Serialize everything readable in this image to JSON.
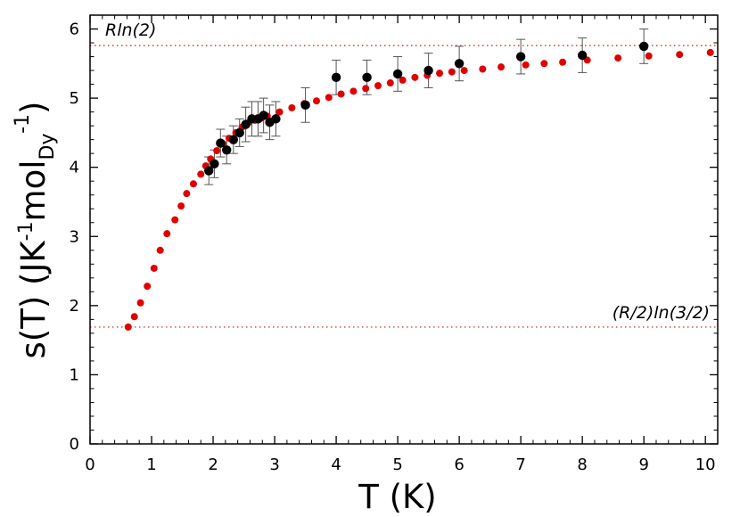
{
  "chart_data": {
    "type": "scatter",
    "title": "",
    "xlabel": "T (K)",
    "ylabel": {
      "prefix": "s(T) (JK",
      "sup1": "-1",
      "mid": "mol",
      "sub": "Dy",
      "sup2": "-1",
      "suffix": ")"
    },
    "xlim": [
      0,
      10.2
    ],
    "ylim": [
      0,
      6.2
    ],
    "x_ticks": [
      "0",
      "1",
      "2",
      "3",
      "4",
      "5",
      "6",
      "7",
      "8",
      "9",
      "10"
    ],
    "y_ticks": [
      "0",
      "1",
      "2",
      "3",
      "4",
      "5",
      "6"
    ],
    "grid": false,
    "reference_lines": [
      {
        "label": "Rln(2)",
        "y": 5.76,
        "color": "#d04040"
      },
      {
        "label": "(R/2)ln(3/2)",
        "y": 1.69,
        "color": "#d04040"
      }
    ],
    "series": [
      {
        "color": "#e00000",
        "points": [
          [
            0.62,
            1.69
          ],
          [
            0.72,
            1.84
          ],
          [
            0.82,
            2.04
          ],
          [
            0.93,
            2.28
          ],
          [
            1.04,
            2.54
          ],
          [
            1.14,
            2.8
          ],
          [
            1.25,
            3.04
          ],
          [
            1.38,
            3.24
          ],
          [
            1.48,
            3.44
          ],
          [
            1.57,
            3.62
          ],
          [
            1.68,
            3.76
          ],
          [
            1.8,
            3.9
          ],
          [
            1.88,
            4.02
          ],
          [
            1.96,
            4.12
          ],
          [
            2.06,
            4.24
          ],
          [
            2.16,
            4.34
          ],
          [
            2.26,
            4.42
          ],
          [
            2.37,
            4.5
          ],
          [
            2.47,
            4.58
          ],
          [
            2.57,
            4.64
          ],
          [
            2.68,
            4.68
          ],
          [
            2.78,
            4.71
          ],
          [
            2.88,
            4.74
          ],
          [
            3.08,
            4.8
          ],
          [
            3.28,
            4.86
          ],
          [
            3.48,
            4.92
          ],
          [
            3.68,
            4.96
          ],
          [
            3.88,
            5.01
          ],
          [
            4.08,
            5.06
          ],
          [
            4.28,
            5.1
          ],
          [
            4.48,
            5.14
          ],
          [
            4.68,
            5.18
          ],
          [
            4.88,
            5.22
          ],
          [
            5.08,
            5.26
          ],
          [
            5.28,
            5.3
          ],
          [
            5.48,
            5.33
          ],
          [
            5.68,
            5.36
          ],
          [
            5.88,
            5.38
          ],
          [
            6.08,
            5.4
          ],
          [
            6.38,
            5.42
          ],
          [
            6.68,
            5.45
          ],
          [
            7.08,
            5.48
          ],
          [
            7.38,
            5.5
          ],
          [
            7.68,
            5.52
          ],
          [
            8.08,
            5.55
          ],
          [
            8.58,
            5.58
          ],
          [
            9.08,
            5.61
          ],
          [
            9.58,
            5.63
          ],
          [
            10.08,
            5.66
          ]
        ]
      },
      {
        "color": "#000000",
        "error_color": "#555555",
        "points": [
          [
            1.93,
            3.95,
            0.2
          ],
          [
            2.02,
            4.05,
            0.2
          ],
          [
            2.12,
            4.35,
            0.2
          ],
          [
            2.22,
            4.25,
            0.2
          ],
          [
            2.33,
            4.4,
            0.2
          ],
          [
            2.43,
            4.5,
            0.2
          ],
          [
            2.53,
            4.62,
            0.25
          ],
          [
            2.63,
            4.7,
            0.25
          ],
          [
            2.73,
            4.7,
            0.25
          ],
          [
            2.82,
            4.75,
            0.25
          ],
          [
            2.92,
            4.65,
            0.25
          ],
          [
            3.02,
            4.7,
            0.25
          ],
          [
            3.5,
            4.9,
            0.25
          ],
          [
            4.0,
            5.3,
            0.25
          ],
          [
            4.5,
            5.3,
            0.25
          ],
          [
            5.0,
            5.35,
            0.25
          ],
          [
            5.5,
            5.4,
            0.25
          ],
          [
            6.0,
            5.5,
            0.25
          ],
          [
            7.0,
            5.6,
            0.25
          ],
          [
            8.0,
            5.62,
            0.25
          ],
          [
            9.0,
            5.75,
            0.25
          ]
        ]
      }
    ]
  }
}
